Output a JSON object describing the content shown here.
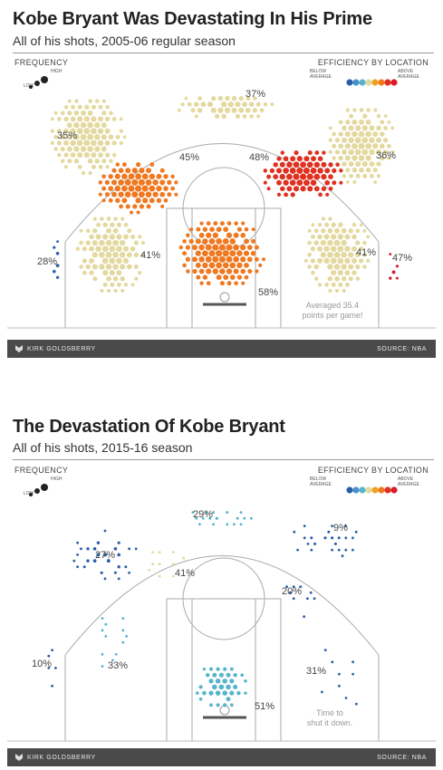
{
  "charts": [
    {
      "title": "Kobe Bryant Was Devastating In His Prime",
      "subtitle": "All of his shots, 2005-06 regular season",
      "frequency_label": "FREQUENCY",
      "freq_low": "LOW",
      "freq_high": "HIGH",
      "efficiency_label": "EFFICIENCY BY LOCATION",
      "below_label": "BELOW AVERAGE",
      "above_label": "ABOVE AVERAGE",
      "annotation": "Averaged 35.4 points per game!",
      "credit": "KIRK GOLDSBERRY",
      "source": "SOURCE: NBA"
    },
    {
      "title": "The Devastation Of Kobe Bryant",
      "subtitle": "All of his shots, 2015-16 season",
      "frequency_label": "FREQUENCY",
      "freq_low": "LOW",
      "freq_high": "HIGH",
      "efficiency_label": "EFFICIENCY BY LOCATION",
      "below_label": "BELOW AVERAGE",
      "above_label": "ABOVE AVERAGE",
      "annotation": "Time to shut it down.",
      "credit": "KIRK GOLDSBERRY",
      "source": "SOURCE: NBA"
    }
  ],
  "colors": {
    "scale": [
      "#2a5fa8",
      "#4a90c8",
      "#58b4cc",
      "#e3d9a0",
      "#f0a020",
      "#f07820",
      "#e03020",
      "#d81e2a"
    ],
    "footer_bg": "#4a4a4a"
  },
  "chart_data": [
    {
      "type": "heatmap",
      "title": "Kobe Bryant Was Devastating In His Prime",
      "season": "2005-06 regular season",
      "zones": [
        {
          "zone": "left corner 3",
          "fg_pct": 28,
          "efficiency": "below",
          "color": "#2a5fa8"
        },
        {
          "zone": "left wing 3",
          "fg_pct": 35,
          "efficiency": "average",
          "color": "#e3d9a0"
        },
        {
          "zone": "top of key 3",
          "fg_pct": 37,
          "efficiency": "average",
          "color": "#e3d9a0"
        },
        {
          "zone": "right wing 3",
          "fg_pct": 36,
          "efficiency": "average",
          "color": "#e3d9a0"
        },
        {
          "zone": "right corner 3",
          "fg_pct": 47,
          "efficiency": "above",
          "color": "#d81e2a"
        },
        {
          "zone": "left-center mid-range",
          "fg_pct": 45,
          "efficiency": "above",
          "color": "#f07820"
        },
        {
          "zone": "right-center mid-range",
          "fg_pct": 48,
          "efficiency": "above",
          "color": "#e03020"
        },
        {
          "zone": "left baseline mid-range",
          "fg_pct": 41,
          "efficiency": "average",
          "color": "#e3d9a0"
        },
        {
          "zone": "right baseline mid-range",
          "fg_pct": 41,
          "efficiency": "average",
          "color": "#e3d9a0"
        },
        {
          "zone": "restricted area",
          "fg_pct": 58,
          "efficiency": "above",
          "color": "#f07820"
        }
      ]
    },
    {
      "type": "heatmap",
      "title": "The Devastation Of Kobe Bryant",
      "season": "2015-16 season",
      "zones": [
        {
          "zone": "left corner 3",
          "fg_pct": 10,
          "efficiency": "below",
          "color": "#2a5fa8"
        },
        {
          "zone": "left wing 3",
          "fg_pct": 27,
          "efficiency": "below",
          "color": "#2a5fa8"
        },
        {
          "zone": "top of key 3",
          "fg_pct": 29,
          "efficiency": "below",
          "color": "#58b4cc"
        },
        {
          "zone": "right wing 3",
          "fg_pct": 9,
          "efficiency": "below",
          "color": "#2a5fa8"
        },
        {
          "zone": "left-center mid-range",
          "fg_pct": 41,
          "efficiency": "average",
          "color": "#e3d9a0"
        },
        {
          "zone": "right-center mid-range",
          "fg_pct": 20,
          "efficiency": "below",
          "color": "#2a5fa8"
        },
        {
          "zone": "left baseline mid-range",
          "fg_pct": 33,
          "efficiency": "below",
          "color": "#58b4cc"
        },
        {
          "zone": "right baseline mid-range",
          "fg_pct": 31,
          "efficiency": "below",
          "color": "#2a5fa8"
        },
        {
          "zone": "restricted area",
          "fg_pct": 51,
          "efficiency": "below",
          "color": "#58b4cc"
        }
      ]
    }
  ]
}
